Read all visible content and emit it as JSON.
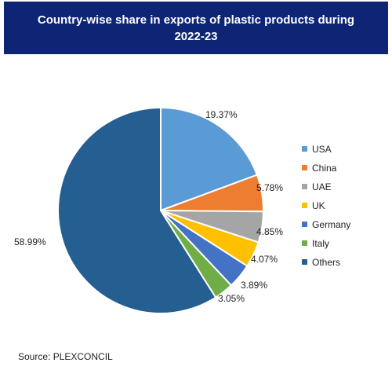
{
  "chart_data": {
    "type": "pie",
    "title": "Country-wise share in exports of plastic products during 2022-23",
    "categories": [
      "USA",
      "China",
      "UAE",
      "UK",
      "Germany",
      "Italy",
      "Others"
    ],
    "values": [
      19.37,
      5.78,
      4.85,
      4.07,
      3.89,
      3.05,
      58.99
    ],
    "value_labels": [
      "19.37%",
      "5.78%",
      "4.85%",
      "4.07%",
      "3.89%",
      "3.05%",
      "58.99%"
    ],
    "colors": [
      "#5b9bd5",
      "#ed7d31",
      "#a5a5a5",
      "#ffc000",
      "#4472c4",
      "#70ad47",
      "#255e91"
    ],
    "legend_position": "right",
    "source": "Source: PLEXCONCIL"
  }
}
